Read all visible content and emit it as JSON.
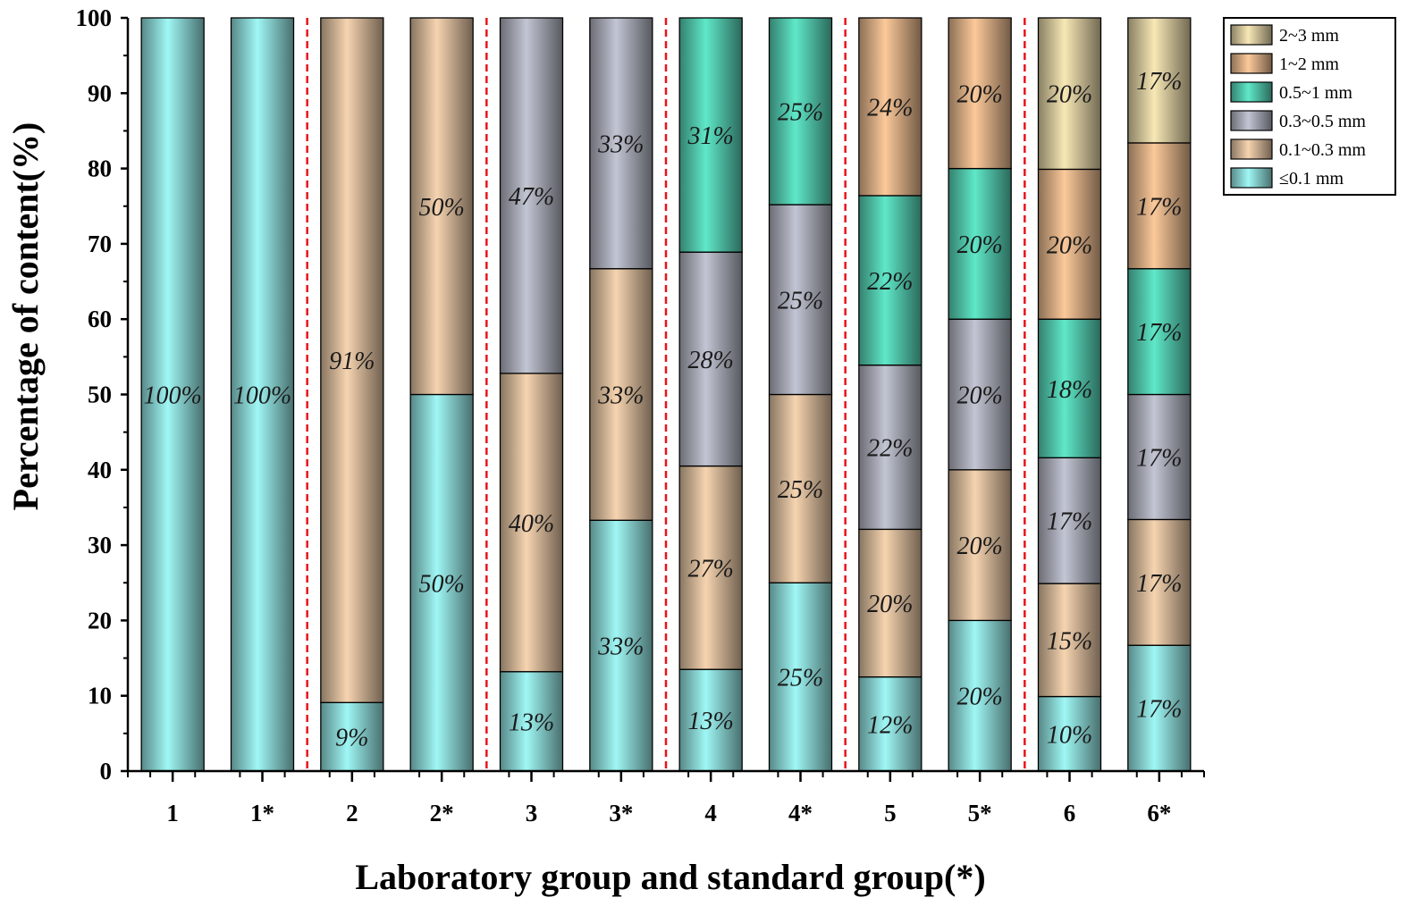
{
  "chart_data": {
    "type": "bar",
    "stacked": true,
    "title": "",
    "xlabel": "Laboratory group and standard group(*)",
    "ylabel": "Percentage of content(%)",
    "ylim": [
      0,
      100
    ],
    "yticks": [
      0,
      10,
      20,
      30,
      40,
      50,
      60,
      70,
      80,
      90,
      100
    ],
    "categories": [
      "1",
      "1*",
      "2",
      "2*",
      "3",
      "3*",
      "4",
      "4*",
      "5",
      "5*",
      "6",
      "6*"
    ],
    "group_separators_after": [
      "1*",
      "2*",
      "3*",
      "4*",
      "5*"
    ],
    "legend_position": "top-right",
    "series": [
      {
        "name": "≤0.1 mm",
        "color": "#9ff7f5",
        "values": [
          100,
          100,
          9.1,
          50,
          13.2,
          33.3,
          13.5,
          25,
          12.5,
          20,
          9.9,
          16.7
        ],
        "labels": [
          "100%",
          "100%",
          "9%",
          "50%",
          "13%",
          "33%",
          "13%",
          "25%",
          "12%",
          "20%",
          "10%",
          "17%"
        ]
      },
      {
        "name": "0.1~0.3 mm",
        "color": "#f6d4b0",
        "values": [
          0,
          0,
          90.9,
          50,
          39.6,
          33.4,
          27,
          25,
          19.6,
          20,
          15,
          16.7
        ],
        "labels": [
          "",
          "",
          "91%",
          "50%",
          "40%",
          "33%",
          "27%",
          "25%",
          "20%",
          "20%",
          "15%",
          "17%"
        ]
      },
      {
        "name": "0.3~0.5 mm",
        "color": "#c2c5d3",
        "values": [
          0,
          0,
          0,
          0,
          47.2,
          33.3,
          28.4,
          25.2,
          21.8,
          20,
          16.7,
          16.6
        ],
        "labels": [
          "",
          "",
          "",
          "",
          "47%",
          "33%",
          "28%",
          "25%",
          "22%",
          "20%",
          "17%",
          "17%"
        ]
      },
      {
        "name": "0.5~1 mm",
        "color": "#5fe8c8",
        "values": [
          0,
          0,
          0,
          0,
          0,
          0,
          31.1,
          24.8,
          22.5,
          20,
          18.4,
          16.7
        ],
        "labels": [
          "",
          "",
          "",
          "",
          "",
          "",
          "31%",
          "25%",
          "22%",
          "20%",
          "18%",
          "17%"
        ]
      },
      {
        "name": "1~2 mm",
        "color": "#fcc99a",
        "values": [
          0,
          0,
          0,
          0,
          0,
          0,
          0,
          0,
          23.6,
          20,
          19.9,
          16.7
        ],
        "labels": [
          "",
          "",
          "",
          "",
          "",
          "",
          "",
          "",
          "24%",
          "20%",
          "20%",
          "17%"
        ]
      },
      {
        "name": "2~3 mm",
        "color": "#f8e8b6",
        "values": [
          0,
          0,
          0,
          0,
          0,
          0,
          0,
          0,
          0,
          0,
          20.1,
          16.6
        ],
        "labels": [
          "",
          "",
          "",
          "",
          "",
          "",
          "",
          "",
          "",
          "",
          "20%",
          "17%"
        ]
      }
    ]
  }
}
